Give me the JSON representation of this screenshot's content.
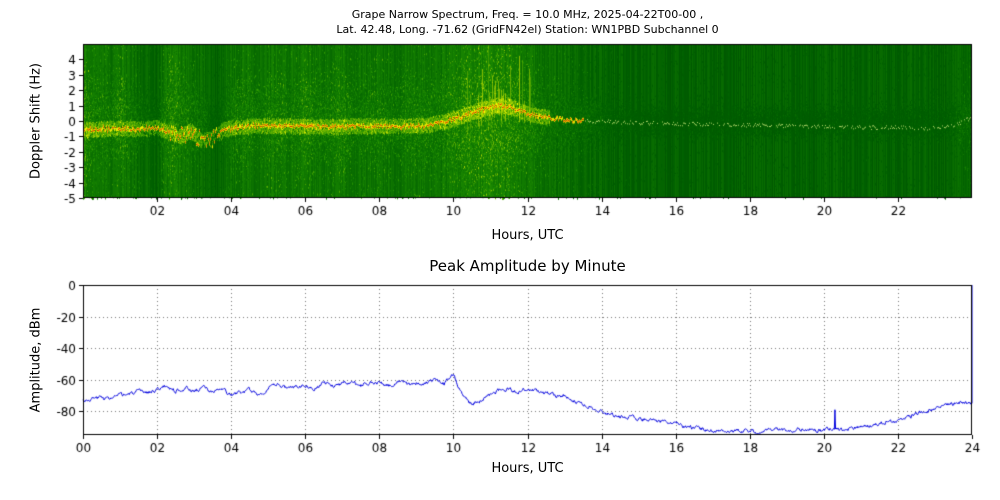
{
  "chart_data": [
    {
      "type": "heatmap",
      "title": "Grape Narrow Spectrum, Freq. = 10.0 MHz, 2025-04-22T00-00 ,",
      "subtitle": "Lat.  42.48, Long. -71.62 (GridFN42el) Station: WN1PBD Subchannel 0",
      "xlabel": "Hours, UTC",
      "ylabel": "Doppler Shift (Hz)",
      "xlim": [
        0,
        24
      ],
      "ylim": [
        -5,
        5
      ],
      "xticks": [
        2,
        4,
        6,
        8,
        10,
        12,
        14,
        16,
        18,
        20,
        22
      ],
      "xtick_labels": [
        "02",
        "04",
        "06",
        "08",
        "10",
        "12",
        "14",
        "16",
        "18",
        "20",
        "22"
      ],
      "yticks": [
        4,
        3,
        2,
        1,
        0,
        -1,
        -2,
        -3,
        -4,
        -5
      ],
      "ytick_labels": [
        "4",
        "3",
        "2",
        "1",
        "0",
        "-1",
        "-2",
        "-3",
        "-4",
        "-5"
      ],
      "grid": false,
      "seed": 7,
      "colormap_stops": [
        "#002f00",
        "#005f00",
        "#1f8f00",
        "#6fb800",
        "#c4e000",
        "#ffff00",
        "#ffd000"
      ],
      "trace_core_color": "#d42a00",
      "trace_halo_color": "rgba(255,240,0,0.9)",
      "trace_faint_color": "rgba(235,255,140,0.75)",
      "carrier_trace_hours": [
        0,
        0.5,
        1,
        1.5,
        2,
        2.3,
        2.6,
        2.9,
        3.2,
        3.5,
        3.8,
        4.5,
        5.5,
        6.5,
        7.5,
        8.5,
        9.2,
        9.6,
        10,
        10.4,
        10.8,
        11.2,
        11.6,
        12,
        12.5,
        13,
        14,
        15,
        16,
        17,
        18,
        19,
        20,
        21,
        22,
        23,
        23.6,
        24
      ],
      "carrier_trace_hz": [
        -0.55,
        -0.5,
        -0.45,
        -0.5,
        -0.4,
        -0.7,
        -1.0,
        -0.6,
        -1.3,
        -1.1,
        -0.5,
        -0.3,
        -0.3,
        -0.35,
        -0.3,
        -0.3,
        -0.25,
        -0.1,
        0.15,
        0.5,
        0.8,
        1.05,
        0.9,
        0.5,
        0.25,
        0.1,
        0,
        -0.1,
        -0.15,
        -0.2,
        -0.25,
        -0.3,
        -0.35,
        -0.4,
        -0.4,
        -0.45,
        -0.2,
        0.3
      ],
      "activity_hours": [
        0,
        0.2,
        0.8,
        1.0,
        1.3,
        2.0,
        2.15,
        2.4,
        2.7,
        3.0,
        3.5,
        3.65,
        3.9,
        4.3,
        4.7,
        5.2,
        5.6,
        6.0,
        6.4,
        7.0,
        7.4,
        8.0,
        8.4,
        9.0,
        9.5,
        10.0,
        10.5,
        11.0,
        11.5,
        12.0,
        12.5,
        13.0,
        13.5,
        14.0,
        14.5,
        15,
        16,
        18,
        20,
        21,
        22,
        22.9,
        23.3,
        23.7,
        24
      ],
      "activity_level": [
        0.85,
        0.6,
        0.5,
        0.7,
        0.45,
        0.15,
        0.5,
        0.75,
        0.55,
        0.5,
        0.15,
        0.12,
        0.45,
        0.6,
        0.45,
        0.65,
        0.5,
        0.7,
        0.5,
        0.65,
        0.45,
        0.6,
        0.45,
        0.6,
        0.5,
        0.7,
        0.8,
        0.85,
        0.8,
        0.6,
        0.45,
        0.35,
        0.3,
        0.2,
        0.13,
        0.1,
        0.08,
        0.08,
        0.08,
        0.1,
        0.08,
        0.12,
        0.1,
        0.3,
        0.35
      ],
      "spike_region": {
        "start": 10.3,
        "end": 12.2
      },
      "messy_trace_region": {
        "start": 2.3,
        "end": 3.6
      }
    },
    {
      "type": "line",
      "title": "Peak Amplitude by Minute",
      "xlabel": "Hours, UTC",
      "ylabel": "Amplitude, dBm",
      "xlim": [
        0,
        24
      ],
      "ylim": [
        -95,
        0
      ],
      "xticks": [
        0,
        2,
        4,
        6,
        8,
        10,
        12,
        14,
        16,
        18,
        20,
        22,
        24
      ],
      "xtick_labels": [
        "00",
        "02",
        "04",
        "06",
        "08",
        "10",
        "12",
        "14",
        "16",
        "18",
        "20",
        "22",
        "24"
      ],
      "yticks": [
        0,
        -20,
        -40,
        -60,
        -80
      ],
      "ytick_labels": [
        "0",
        "-20",
        "-40",
        "-60",
        "-80"
      ],
      "grid": true,
      "grid_style": "dotted",
      "line_color": "#0000dd",
      "seed": 3,
      "x_step_hours": 0.25,
      "values": [
        -73,
        -72,
        -71,
        -72,
        -70,
        -69,
        -68,
        -68,
        -66,
        -64,
        -67,
        -65,
        -67,
        -65,
        -68,
        -66,
        -70,
        -68,
        -67,
        -69,
        -66,
        -63,
        -65,
        -64,
        -63,
        -65,
        -62,
        -64,
        -62,
        -61,
        -64,
        -62,
        -62,
        -64,
        -61,
        -63,
        -62,
        -63,
        -60,
        -62,
        -57,
        -70,
        -75,
        -73,
        -69,
        -67,
        -66,
        -68,
        -66,
        -67,
        -69,
        -70,
        -71,
        -73,
        -75,
        -77,
        -80,
        -82,
        -83,
        -84,
        -85,
        -85,
        -86,
        -87,
        -88,
        -90,
        -91,
        -91,
        -92,
        -92,
        -93,
        -92,
        -92,
        -93,
        -92,
        -92,
        -92,
        -92,
        -91,
        -92,
        -92,
        -91,
        -92,
        -91,
        -90,
        -89,
        -88,
        -87,
        -86,
        -84,
        -82,
        -80,
        -78,
        -76,
        -75,
        -74,
        -75
      ],
      "spikes": [
        {
          "hour": 20.3,
          "value": -79
        }
      ],
      "end_spike_to_dbm": 0
    }
  ]
}
